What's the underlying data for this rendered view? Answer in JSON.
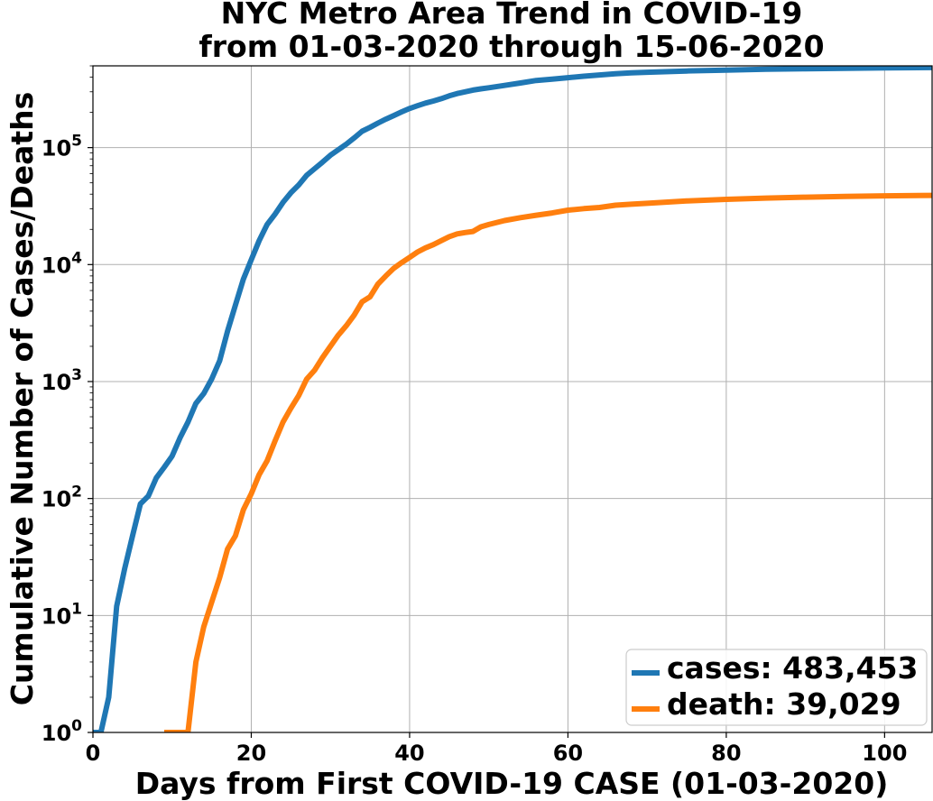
{
  "chart_data": {
    "type": "line",
    "title_line1": "NYC Metro Area Trend in COVID-19",
    "title_line2": "from 01-03-2020 through 15-06-2020",
    "xlabel": "Days from First COVID-19 CASE (01-03-2020)",
    "ylabel": "Cumulative Number of Cases/Deaths",
    "yscale": "log",
    "grid": true,
    "legend_placement": "lower-right",
    "xlim": [
      0,
      106
    ],
    "ylim": [
      1,
      500000
    ],
    "x_ticks": [
      0,
      20,
      40,
      60,
      80,
      100
    ],
    "y_ticks": [
      {
        "value": 1,
        "base": "10",
        "exp": "0"
      },
      {
        "value": 10,
        "base": "10",
        "exp": "1"
      },
      {
        "value": 100,
        "base": "10",
        "exp": "2"
      },
      {
        "value": 1000,
        "base": "10",
        "exp": "3"
      },
      {
        "value": 10000,
        "base": "10",
        "exp": "4"
      },
      {
        "value": 100000,
        "base": "10",
        "exp": "5"
      }
    ],
    "series": [
      {
        "name": "cases: 483,453",
        "color": "#1f77b4",
        "points": [
          [
            0,
            1
          ],
          [
            1,
            1
          ],
          [
            2,
            2
          ],
          [
            3,
            12
          ],
          [
            4,
            25
          ],
          [
            5,
            48
          ],
          [
            6,
            90
          ],
          [
            7,
            105
          ],
          [
            8,
            150
          ],
          [
            9,
            185
          ],
          [
            10,
            230
          ],
          [
            11,
            330
          ],
          [
            12,
            450
          ],
          [
            13,
            650
          ],
          [
            14,
            790
          ],
          [
            15,
            1050
          ],
          [
            16,
            1500
          ],
          [
            17,
            2700
          ],
          [
            18,
            4500
          ],
          [
            19,
            7500
          ],
          [
            20,
            11000
          ],
          [
            21,
            16000
          ],
          [
            22,
            22000
          ],
          [
            23,
            27000
          ],
          [
            24,
            34000
          ],
          [
            25,
            41000
          ],
          [
            26,
            48000
          ],
          [
            27,
            58000
          ],
          [
            28,
            66000
          ],
          [
            29,
            75000
          ],
          [
            30,
            86000
          ],
          [
            31,
            96000
          ],
          [
            32,
            107000
          ],
          [
            33,
            121000
          ],
          [
            34,
            138000
          ],
          [
            35,
            149000
          ],
          [
            36,
            162000
          ],
          [
            37,
            175000
          ],
          [
            38,
            188000
          ],
          [
            39,
            202000
          ],
          [
            40,
            216000
          ],
          [
            41,
            228000
          ],
          [
            42,
            240000
          ],
          [
            43,
            250000
          ],
          [
            44,
            262000
          ],
          [
            45,
            277000
          ],
          [
            46,
            290000
          ],
          [
            47,
            300000
          ],
          [
            48,
            310000
          ],
          [
            49,
            318000
          ],
          [
            50,
            325000
          ],
          [
            52,
            340000
          ],
          [
            54,
            357000
          ],
          [
            56,
            375000
          ],
          [
            58,
            385000
          ],
          [
            60,
            396000
          ],
          [
            62,
            408000
          ],
          [
            64,
            418000
          ],
          [
            66,
            428000
          ],
          [
            68,
            435000
          ],
          [
            70,
            441000
          ],
          [
            75,
            452000
          ],
          [
            80,
            460000
          ],
          [
            85,
            467000
          ],
          [
            90,
            472000
          ],
          [
            95,
            476000
          ],
          [
            100,
            480000
          ],
          [
            106,
            483453
          ]
        ]
      },
      {
        "name": "death: 39,029",
        "color": "#ff7f0e",
        "points": [
          [
            9,
            1
          ],
          [
            10,
            1
          ],
          [
            11,
            1
          ],
          [
            12,
            1
          ],
          [
            13,
            4
          ],
          [
            14,
            8
          ],
          [
            15,
            13
          ],
          [
            16,
            21
          ],
          [
            17,
            37
          ],
          [
            18,
            48
          ],
          [
            19,
            80
          ],
          [
            20,
            110
          ],
          [
            21,
            160
          ],
          [
            22,
            210
          ],
          [
            23,
            310
          ],
          [
            24,
            450
          ],
          [
            25,
            590
          ],
          [
            26,
            760
          ],
          [
            27,
            1050
          ],
          [
            28,
            1250
          ],
          [
            29,
            1600
          ],
          [
            30,
            2000
          ],
          [
            31,
            2500
          ],
          [
            32,
            3000
          ],
          [
            33,
            3700
          ],
          [
            34,
            4800
          ],
          [
            35,
            5300
          ],
          [
            36,
            6800
          ],
          [
            37,
            8000
          ],
          [
            38,
            9300
          ],
          [
            39,
            10400
          ],
          [
            40,
            11500
          ],
          [
            41,
            12800
          ],
          [
            42,
            13900
          ],
          [
            43,
            14800
          ],
          [
            44,
            16000
          ],
          [
            45,
            17300
          ],
          [
            46,
            18300
          ],
          [
            47,
            18800
          ],
          [
            48,
            19200
          ],
          [
            49,
            21000
          ],
          [
            50,
            22000
          ],
          [
            52,
            23800
          ],
          [
            54,
            25200
          ],
          [
            56,
            26400
          ],
          [
            58,
            27600
          ],
          [
            60,
            29200
          ],
          [
            62,
            30100
          ],
          [
            64,
            30800
          ],
          [
            66,
            32200
          ],
          [
            68,
            32800
          ],
          [
            70,
            33400
          ],
          [
            75,
            35000
          ],
          [
            80,
            36100
          ],
          [
            85,
            37000
          ],
          [
            90,
            37700
          ],
          [
            95,
            38300
          ],
          [
            100,
            38700
          ],
          [
            106,
            39029
          ]
        ]
      }
    ]
  }
}
